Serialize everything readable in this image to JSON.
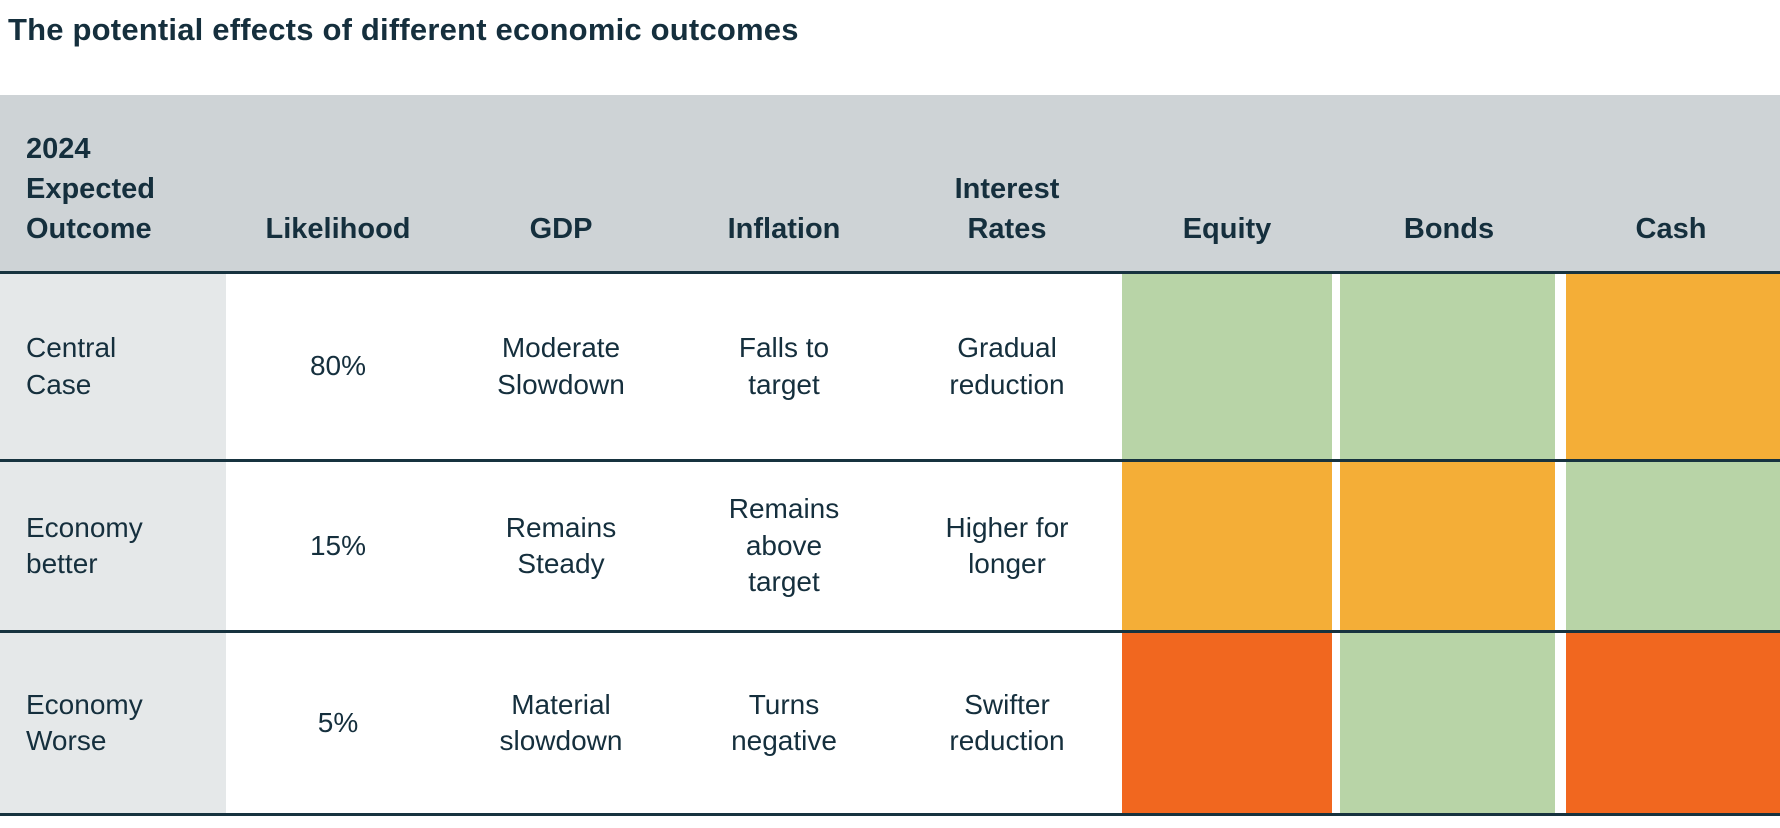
{
  "title": "The potential effects of different economic outcomes",
  "colors": {
    "header_bg": "#ced3d6",
    "row_label_bg": "#e5e8e9",
    "grid_line": "#17333f",
    "text": "#152f3d",
    "rating_green": "#b8d4a7",
    "rating_amber": "#f4ae37",
    "rating_red_orange": "#f1671f"
  },
  "table": {
    "headers": {
      "outcome": "2024\nExpected\nOutcome",
      "likelihood": "Likelihood",
      "gdp": "GDP",
      "inflation": "Inflation",
      "interest_rates": "Interest\nRates",
      "equity": "Equity",
      "bonds": "Bonds",
      "cash": "Cash"
    },
    "rows": [
      {
        "outcome": "Central\nCase",
        "likelihood": "80%",
        "gdp": "Moderate\nSlowdown",
        "inflation": "Falls to\ntarget",
        "interest_rates": "Gradual\nreduction",
        "ratings": {
          "equity": "#b8d4a7",
          "bonds": "#b8d4a7",
          "cash": "#f4ae37"
        }
      },
      {
        "outcome": "Economy\nbetter",
        "likelihood": "15%",
        "gdp": "Remains\nSteady",
        "inflation": "Remains\nabove\ntarget",
        "interest_rates": "Higher for\nlonger",
        "ratings": {
          "equity": "#f4ae37",
          "bonds": "#f4ae37",
          "cash": "#b8d4a7"
        }
      },
      {
        "outcome": "Economy\nWorse",
        "likelihood": "5%",
        "gdp": "Material\nslowdown",
        "inflation": "Turns\nnegative",
        "interest_rates": "Swifter\nreduction",
        "ratings": {
          "equity": "#f1671f",
          "bonds": "#b8d4a7",
          "cash": "#f1671f"
        }
      }
    ]
  },
  "chart_data": {
    "type": "table",
    "title": "The potential effects of different economic outcomes",
    "columns": [
      "2024 Expected Outcome",
      "Likelihood",
      "GDP",
      "Inflation",
      "Interest Rates",
      "Equity",
      "Bonds",
      "Cash"
    ],
    "rows": [
      [
        "Central Case",
        "80%",
        "Moderate Slowdown",
        "Falls to target",
        "Gradual reduction",
        "green",
        "green",
        "amber"
      ],
      [
        "Economy better",
        "15%",
        "Remains Steady",
        "Remains above target",
        "Higher for longer",
        "amber",
        "amber",
        "green"
      ],
      [
        "Economy Worse",
        "5%",
        "Material slowdown",
        "Turns negative",
        "Swifter reduction",
        "red-orange",
        "green",
        "red-orange"
      ]
    ],
    "color_key": {
      "green": "#b8d4a7",
      "amber": "#f4ae37",
      "red-orange": "#f1671f"
    }
  }
}
